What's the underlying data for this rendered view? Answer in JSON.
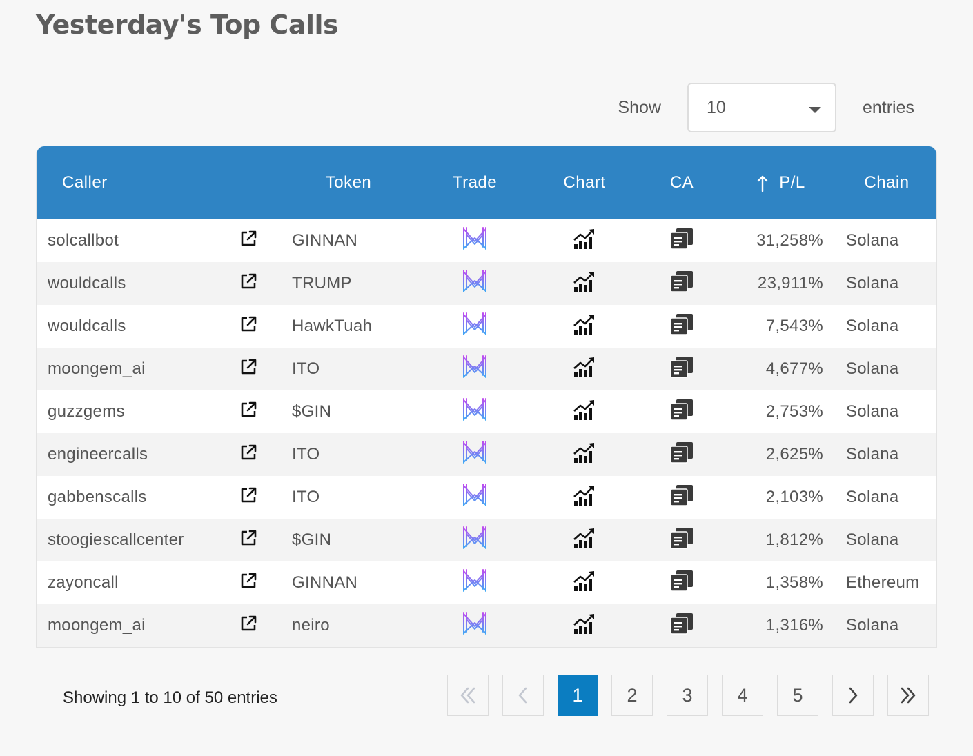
{
  "page": {
    "title": "Yesterday's Top Calls"
  },
  "length": {
    "show_label": "Show",
    "value": "10",
    "entries_label": "entries"
  },
  "table": {
    "headers": {
      "caller": "Caller",
      "token": "Token",
      "trade": "Trade",
      "chart": "Chart",
      "ca": "CA",
      "pl": "P/L",
      "chain": "Chain"
    },
    "rows": [
      {
        "caller": "solcallbot",
        "token": "GINNAN",
        "pl": "31,258%",
        "chain": "Solana"
      },
      {
        "caller": "wouldcalls",
        "token": "TRUMP",
        "pl": "23,911%",
        "chain": "Solana"
      },
      {
        "caller": "wouldcalls",
        "token": "HawkTuah",
        "pl": "7,543%",
        "chain": "Solana"
      },
      {
        "caller": "moongem_ai",
        "token": "ITO",
        "pl": "4,677%",
        "chain": "Solana"
      },
      {
        "caller": "guzzgems",
        "token": "$GIN",
        "pl": "2,753%",
        "chain": "Solana"
      },
      {
        "caller": "engineercalls",
        "token": "ITO",
        "pl": "2,625%",
        "chain": "Solana"
      },
      {
        "caller": "gabbenscalls",
        "token": "ITO",
        "pl": "2,103%",
        "chain": "Solana"
      },
      {
        "caller": "stoogiescallcenter",
        "token": "$GIN",
        "pl": "1,812%",
        "chain": "Solana"
      },
      {
        "caller": "zayoncall",
        "token": "GINNAN",
        "pl": "1,358%",
        "chain": "Ethereum"
      },
      {
        "caller": "moongem_ai",
        "token": "neiro",
        "pl": "1,316%",
        "chain": "Solana"
      }
    ],
    "icons": {
      "link": "external-link-icon",
      "trade": "trade-logo-icon",
      "chart": "chart-icon",
      "ca": "copy-icon",
      "sort": "sort-up-arrow-icon"
    },
    "colors": {
      "header_bg": "#2f84c4",
      "trade_logo_top": "#c04cf0",
      "trade_logo_bottom": "#3fa9f5"
    }
  },
  "footer": {
    "info": "Showing 1 to 10 of 50 entries",
    "pages": [
      "1",
      "2",
      "3",
      "4",
      "5"
    ],
    "active_page": "1",
    "colors": {
      "active": "#0b7dc1"
    }
  }
}
